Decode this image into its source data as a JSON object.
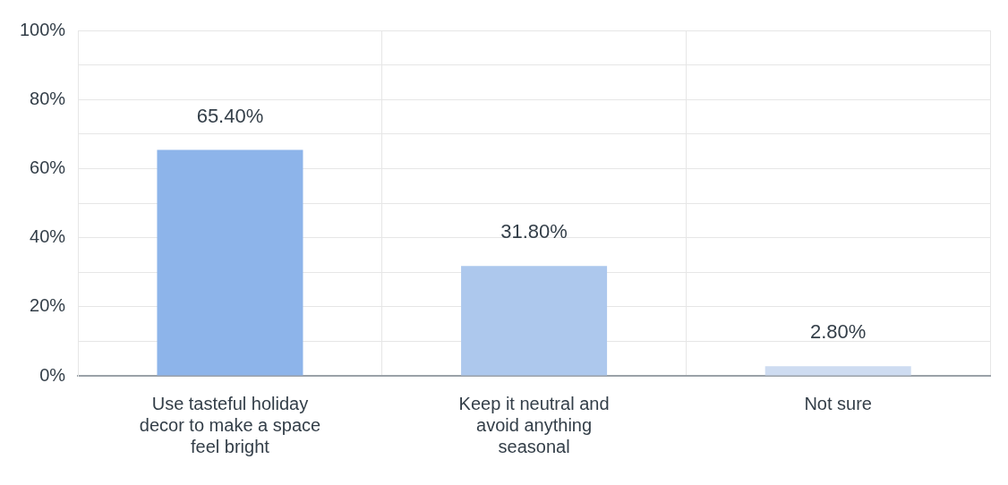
{
  "chart_data": {
    "type": "bar",
    "categories": [
      "Use tasteful holiday decor to make a space feel bright",
      "Keep it neutral and avoid anything seasonal",
      "Not sure"
    ],
    "values": [
      65.4,
      31.8,
      2.8
    ],
    "colors": [
      "#8db4ea",
      "#adc8ed",
      "#cedcf1"
    ],
    "value_labels": [
      "65.40%",
      "31.80%",
      "2.80%"
    ],
    "ylim": [
      0,
      100
    ],
    "yticks": [
      {
        "value": 0,
        "label": "0%"
      },
      {
        "value": 10,
        "label": null
      },
      {
        "value": 20,
        "label": "20%"
      },
      {
        "value": 30,
        "label": null
      },
      {
        "value": 40,
        "label": "40%"
      },
      {
        "value": 50,
        "label": null
      },
      {
        "value": 60,
        "label": "60%"
      },
      {
        "value": 70,
        "label": null
      },
      {
        "value": 80,
        "label": "80%"
      },
      {
        "value": 90,
        "label": null
      },
      {
        "value": 100,
        "label": "100%"
      }
    ],
    "grid": true,
    "legend": false
  }
}
